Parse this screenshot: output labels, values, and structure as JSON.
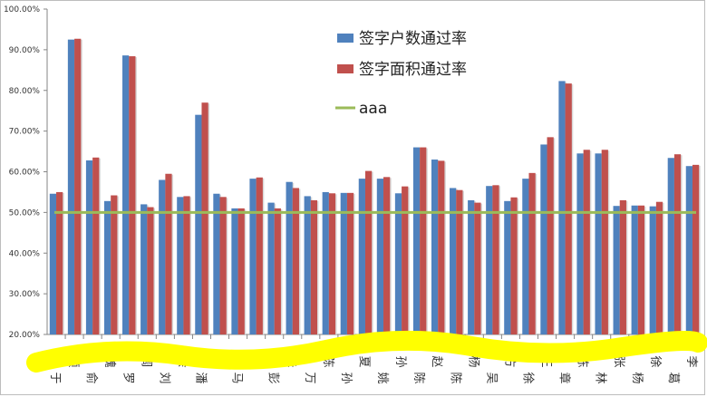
{
  "chart_data": {
    "type": "bar",
    "title": "",
    "xlabel": "",
    "ylabel": "",
    "ylim": [
      20,
      100
    ],
    "yticks": [
      "20.00%",
      "30.00%",
      "40.00%",
      "50.00%",
      "60.00%",
      "70.00%",
      "80.00%",
      "90.00%",
      "100.00%"
    ],
    "grid": false,
    "legend_position": "top-center",
    "categories": [
      "于",
      "顾",
      "俞",
      "魏",
      "罗",
      "周",
      "刘",
      "余",
      "潘",
      "王",
      "马",
      "沈",
      "彭",
      "朱",
      "万",
      "陈",
      "孙",
      "夏",
      "姚",
      "孙",
      "陈",
      "赵",
      "陈",
      "杨",
      "吴",
      "方",
      "徐",
      "王",
      "章",
      "陈",
      "林",
      "张",
      "杨",
      "徐",
      "葛",
      "李"
    ],
    "series": [
      {
        "name": "签字户数通过率",
        "color": "#4f81bd",
        "values": [
          54.6,
          92.5,
          62.8,
          52.8,
          88.6,
          52.0,
          58.0,
          53.8,
          74.0,
          54.6,
          51.0,
          58.3,
          52.4,
          57.5,
          54.0,
          55.0,
          54.8,
          58.3,
          58.3,
          54.7,
          66.0,
          63.0,
          56.0,
          53.0,
          56.5,
          52.8,
          58.3,
          66.7,
          82.3,
          64.5,
          64.5,
          51.6,
          51.7,
          51.5,
          63.4,
          61.4
        ]
      },
      {
        "name": "签字面积通过率",
        "color": "#c0504d",
        "values": [
          55.0,
          92.7,
          63.5,
          54.2,
          88.4,
          51.3,
          59.5,
          54.0,
          77.0,
          53.8,
          51.0,
          58.6,
          51.0,
          56.0,
          53.0,
          54.7,
          54.8,
          60.2,
          58.7,
          56.4,
          66.0,
          62.7,
          55.5,
          52.4,
          56.7,
          53.7,
          59.7,
          68.5,
          81.7,
          65.4,
          65.4,
          53.0,
          51.7,
          52.6,
          64.3,
          61.7
        ]
      },
      {
        "name": "aaa",
        "type": "line",
        "color": "#9bbb59",
        "value": 50
      }
    ]
  }
}
